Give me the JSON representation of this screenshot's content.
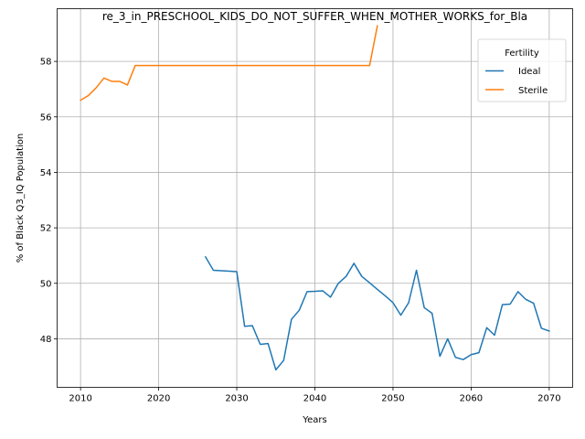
{
  "chart_data": {
    "type": "line",
    "title": "re_3_in_PRESCHOOL_KIDS_DO_NOT_SUFFER_WHEN_MOTHER_WORKS_for_Bla",
    "xlabel": "Years",
    "ylabel": "% of Black Q3_IQ Population",
    "xlim": [
      2007,
      2073
    ],
    "ylim": [
      46.25,
      59.9
    ],
    "xticks": [
      2010,
      2020,
      2030,
      2040,
      2050,
      2060,
      2070
    ],
    "yticks": [
      48,
      50,
      52,
      54,
      56,
      58
    ],
    "grid": true,
    "legend": {
      "title": "Fertility",
      "placement": "top-right"
    },
    "series": [
      {
        "name": "Ideal",
        "color": "#1f77b4",
        "x": [
          2026,
          2027,
          2030,
          2031,
          2032,
          2033,
          2034,
          2035,
          2036,
          2037,
          2038,
          2039,
          2040,
          2041,
          2042,
          2043,
          2044,
          2045,
          2046,
          2047,
          2048,
          2049,
          2050,
          2051,
          2052,
          2053,
          2054,
          2055,
          2056,
          2057,
          2058,
          2059,
          2060,
          2061,
          2062,
          2063,
          2064,
          2065,
          2066,
          2067,
          2068,
          2069,
          2070
        ],
        "values": [
          50.95,
          50.47,
          50.42,
          48.45,
          48.47,
          47.8,
          47.83,
          46.88,
          47.22,
          48.7,
          49.03,
          49.7,
          49.71,
          49.73,
          49.5,
          50.0,
          50.25,
          50.72,
          50.25,
          50.02,
          49.78,
          49.55,
          49.3,
          48.85,
          49.3,
          50.47,
          49.12,
          48.92,
          47.37,
          48.0,
          47.33,
          47.25,
          47.43,
          47.5,
          48.4,
          48.13,
          49.23,
          49.25,
          49.7,
          49.42,
          49.28,
          48.38,
          48.28
        ]
      },
      {
        "name": "Sterile",
        "color": "#ff7f0e",
        "x": [
          2010,
          2011,
          2012,
          2013,
          2014,
          2015,
          2016,
          2017,
          2020,
          2030,
          2040,
          2047,
          2048
        ],
        "values": [
          56.6,
          56.77,
          57.05,
          57.4,
          57.28,
          57.28,
          57.15,
          57.85,
          57.85,
          57.85,
          57.85,
          57.85,
          59.28
        ]
      }
    ]
  }
}
